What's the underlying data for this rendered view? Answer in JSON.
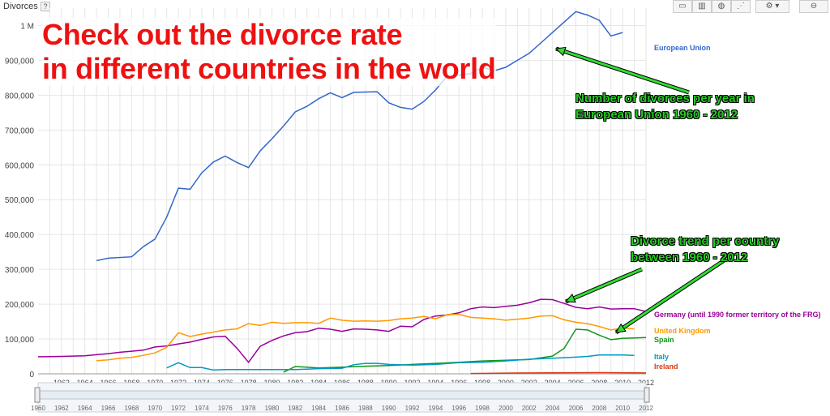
{
  "header": {
    "title": "Divorces",
    "help": "?"
  },
  "toolbar": {
    "settings": "⚙",
    "link": "⊖"
  },
  "headline": {
    "line1": "Check out the divorce rate",
    "line2": "in different countries in the world"
  },
  "annotations": {
    "eu_note_line1": "Number of divorces per year in",
    "eu_note_line2": "European Union 1960 - 2012",
    "country_note_line1": "Divorce trend per country",
    "country_note_line2": "between 1960 - 2012"
  },
  "chart_data": {
    "type": "line",
    "xlim": [
      1960,
      2012
    ],
    "ylim": [
      0,
      1050000
    ],
    "y_ticks": [
      {
        "v": 0,
        "label": "0"
      },
      {
        "v": 100000,
        "label": "100,000"
      },
      {
        "v": 200000,
        "label": "200,000"
      },
      {
        "v": 300000,
        "label": "300,000"
      },
      {
        "v": 400000,
        "label": "400,000"
      },
      {
        "v": 500000,
        "label": "500,000"
      },
      {
        "v": 600000,
        "label": "600,000"
      },
      {
        "v": 700000,
        "label": "700,000"
      },
      {
        "v": 800000,
        "label": "800,000"
      },
      {
        "v": 900000,
        "label": "900,000"
      },
      {
        "v": 1000000,
        "label": "1 M"
      }
    ],
    "x_ticks": [
      "1962",
      "1964",
      "1966",
      "1968",
      "1970",
      "1972",
      "1974",
      "1976",
      "1978",
      "1980",
      "1982",
      "1984",
      "1986",
      "1988",
      "1990",
      "1992",
      "1994",
      "1996",
      "1998",
      "2000",
      "2002",
      "2004",
      "2006",
      "2008",
      "2010",
      "2012"
    ],
    "range_labels": [
      "1960",
      "1962",
      "1964",
      "1966",
      "1968",
      "1970",
      "1972",
      "1974",
      "1976",
      "1978",
      "1980",
      "1982",
      "1984",
      "1986",
      "1988",
      "1990",
      "1992",
      "1994",
      "1996",
      "1998",
      "2000",
      "2002",
      "2004",
      "2006",
      "2008",
      "2010",
      "2012"
    ],
    "series": [
      {
        "name": "European Union",
        "color": "#3366cc",
        "x": [
          1965,
          1966,
          1968,
          1969,
          1970,
          1971,
          1972,
          1973,
          1974,
          1975,
          1976,
          1977,
          1978,
          1979,
          1980,
          1981,
          1982,
          1983,
          1984,
          1985,
          1986,
          1987,
          1988,
          1989,
          1990,
          1991,
          1992,
          1993,
          1994,
          1995,
          1996,
          1997,
          1998,
          1999,
          2000,
          2001,
          2002,
          2003,
          2004,
          2005,
          2006,
          2007,
          2008,
          2009,
          2010
        ],
        "y": [
          325000,
          332000,
          336000,
          365000,
          387000,
          450000,
          533000,
          530000,
          577000,
          608000,
          625000,
          607000,
          592000,
          640000,
          675000,
          712000,
          752000,
          768000,
          790000,
          807000,
          793000,
          808000,
          809000,
          810000,
          778000,
          765000,
          760000,
          782000,
          815000,
          855000,
          858000,
          862000,
          880000,
          870000,
          880000,
          900000,
          920000,
          950000,
          980000,
          1010000,
          1040000,
          1030000,
          1015000,
          970000,
          980000
        ]
      },
      {
        "name": "Germany (until 1990 former territory of the FRG)",
        "color": "#990099",
        "x": [
          1960,
          1962,
          1964,
          1965,
          1966,
          1967,
          1968,
          1969,
          1970,
          1971,
          1972,
          1973,
          1974,
          1975,
          1976,
          1977,
          1978,
          1979,
          1980,
          1981,
          1982,
          1983,
          1984,
          1985,
          1986,
          1987,
          1988,
          1989,
          1990,
          1991,
          1992,
          1993,
          1994,
          1995,
          1996,
          1997,
          1998,
          1999,
          2000,
          2001,
          2002,
          2003,
          2004,
          2005,
          2006,
          2007,
          2008,
          2009,
          2010,
          2011,
          2012
        ],
        "y": [
          49000,
          50000,
          52000,
          55000,
          58000,
          62000,
          65000,
          68000,
          77000,
          80000,
          86000,
          91000,
          99000,
          106000,
          108000,
          74000,
          33000,
          79000,
          96000,
          109000,
          118000,
          121000,
          131000,
          128000,
          122000,
          129000,
          128000,
          126000,
          122000,
          137000,
          135000,
          156000,
          166000,
          169000,
          175000,
          187000,
          192000,
          190000,
          194000,
          197000,
          204000,
          214000,
          213000,
          202000,
          191000,
          187000,
          192000,
          186000,
          187000,
          187000,
          179000
        ]
      },
      {
        "name": "United Kingdom",
        "color": "#ff9900",
        "x": [
          1965,
          1966,
          1967,
          1968,
          1969,
          1970,
          1971,
          1972,
          1973,
          1974,
          1975,
          1976,
          1977,
          1978,
          1979,
          1980,
          1981,
          1982,
          1983,
          1984,
          1985,
          1986,
          1987,
          1988,
          1989,
          1990,
          1991,
          1992,
          1993,
          1994,
          1995,
          1996,
          1997,
          1998,
          1999,
          2000,
          2001,
          2002,
          2003,
          2004,
          2005,
          2006,
          2007,
          2008,
          2009,
          2010,
          2011
        ],
        "y": [
          38000,
          40000,
          45000,
          47000,
          53000,
          60000,
          76000,
          118000,
          107000,
          114000,
          120000,
          126000,
          129000,
          144000,
          139000,
          148000,
          145000,
          147000,
          147000,
          145000,
          160000,
          154000,
          151000,
          152000,
          151000,
          153000,
          158000,
          160000,
          165000,
          158000,
          170000,
          171000,
          162000,
          160000,
          158000,
          154000,
          157000,
          160000,
          166000,
          167000,
          155000,
          148000,
          144000,
          136000,
          126000,
          132000,
          129000
        ]
      },
      {
        "name": "Spain",
        "color": "#109618",
        "x": [
          1981,
          1982,
          1984,
          1986,
          1988,
          1990,
          1992,
          1994,
          1996,
          1998,
          2000,
          2002,
          2003,
          2004,
          2005,
          2006,
          2007,
          2008,
          2009,
          2010,
          2012
        ],
        "y": [
          5000,
          21000,
          17000,
          19000,
          22000,
          24000,
          27000,
          30000,
          33000,
          37000,
          39000,
          41000,
          46000,
          51000,
          73000,
          128000,
          126000,
          111000,
          98000,
          102000,
          104000
        ]
      },
      {
        "name": "Italy",
        "color": "#0099c6",
        "x": [
          1971,
          1972,
          1973,
          1974,
          1975,
          1976,
          1978,
          1980,
          1982,
          1984,
          1986,
          1987,
          1988,
          1989,
          1990,
          1992,
          1994,
          1996,
          1998,
          2000,
          2002,
          2004,
          2006,
          2007,
          2008,
          2010,
          2011
        ],
        "y": [
          17000,
          32000,
          18000,
          18000,
          11000,
          12000,
          12000,
          12000,
          12000,
          15000,
          16000,
          26000,
          30000,
          30000,
          27000,
          25000,
          27000,
          32000,
          33000,
          37000,
          42000,
          45000,
          48000,
          50000,
          54000,
          54000,
          53000
        ]
      },
      {
        "name": "Ireland",
        "color": "#dc3912",
        "x": [
          1997,
          2000,
          2004,
          2008,
          2012
        ],
        "y": [
          1000,
          2000,
          3000,
          3500,
          2500
        ]
      }
    ]
  }
}
